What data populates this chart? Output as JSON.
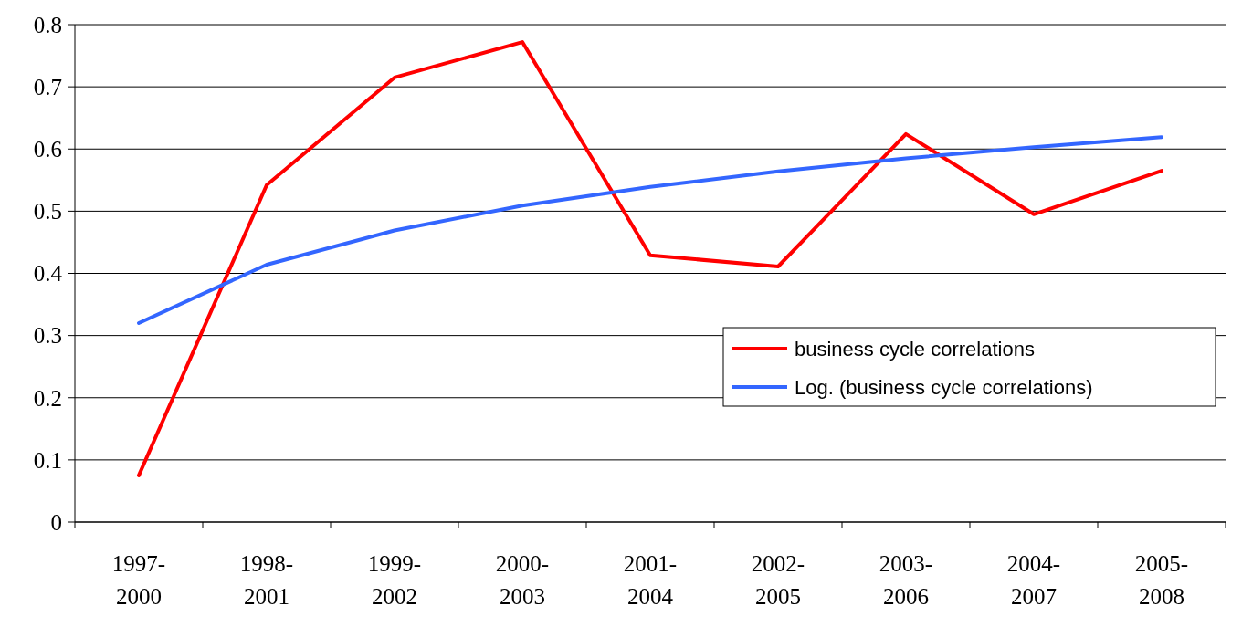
{
  "chart_data": {
    "type": "line",
    "categories": [
      "1997-2000",
      "1998-2001",
      "1999-2002",
      "2000-2003",
      "2001-2004",
      "2002-2005",
      "2003-2006",
      "2004-2007",
      "2005-2008"
    ],
    "series": [
      {
        "name": "business cycle correlations",
        "color": "#ff0000",
        "values": [
          0.075,
          0.542,
          0.715,
          0.772,
          0.429,
          0.411,
          0.624,
          0.495,
          0.565
        ]
      },
      {
        "name": "Log. (business cycle correlations)",
        "color": "#3366ff",
        "values": [
          0.32,
          0.414,
          0.469,
          0.509,
          0.539,
          0.564,
          0.585,
          0.603,
          0.619
        ]
      }
    ],
    "ylim": [
      0,
      0.8
    ],
    "yticks": [
      0,
      0.1,
      0.2,
      0.3,
      0.4,
      0.5,
      0.6,
      0.7,
      0.8
    ],
    "grid": "y",
    "legend": "right",
    "marker": "none",
    "line_style": "solid"
  }
}
